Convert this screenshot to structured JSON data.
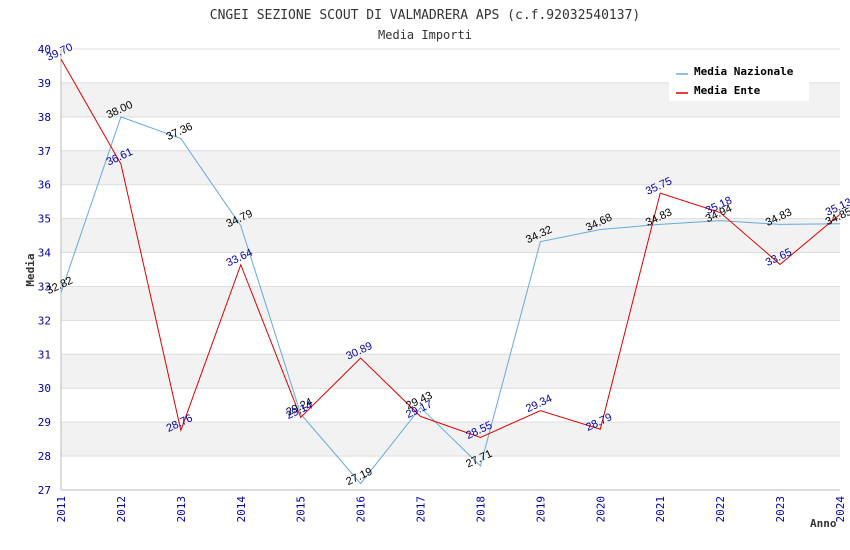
{
  "chart_data": {
    "type": "line",
    "title": "CNGEI SEZIONE SCOUT DI VALMADRERA APS (c.f.92032540137)",
    "subtitle": "Media Importi",
    "xlabel": "Anno",
    "ylabel": "Media",
    "x": [
      "2011",
      "2012",
      "2013",
      "2014",
      "2015",
      "2016",
      "2017",
      "2018",
      "2019",
      "2020",
      "2021",
      "2022",
      "2023",
      "2024"
    ],
    "ylim": [
      27,
      40
    ],
    "yticks": [
      "27",
      "28",
      "29",
      "30",
      "31",
      "32",
      "33",
      "34",
      "35",
      "36",
      "37",
      "38",
      "39",
      "40"
    ],
    "legend_position": "top-right",
    "grid": true,
    "series": [
      {
        "name": "Media Nazionale",
        "color": "#66aadd",
        "label_color": "#000000",
        "values": [
          32.82,
          38.0,
          37.36,
          34.79,
          29.24,
          27.19,
          29.43,
          27.71,
          34.32,
          34.68,
          34.83,
          34.94,
          34.83,
          34.85
        ],
        "labels": [
          "32.82",
          "38.00",
          "37.36",
          "34.79",
          "29.24",
          "27.19",
          "29.43",
          "27.71",
          "34.32",
          "34.68",
          "34.83",
          "34.94",
          "34.83",
          "34.85"
        ]
      },
      {
        "name": "Media Ente",
        "color": "#dd0000",
        "label_color": "#0000aa",
        "values": [
          39.7,
          36.61,
          28.76,
          33.64,
          29.14,
          30.89,
          29.17,
          28.55,
          29.34,
          28.79,
          35.75,
          35.18,
          33.65,
          35.13
        ],
        "labels": [
          "39.70",
          "36.61",
          "28.76",
          "33.64",
          "29.14",
          "30.89",
          "29.17",
          "28.55",
          "29.34",
          "28.79",
          "35.75",
          "35.18",
          "33.65",
          "35.13"
        ]
      }
    ]
  }
}
